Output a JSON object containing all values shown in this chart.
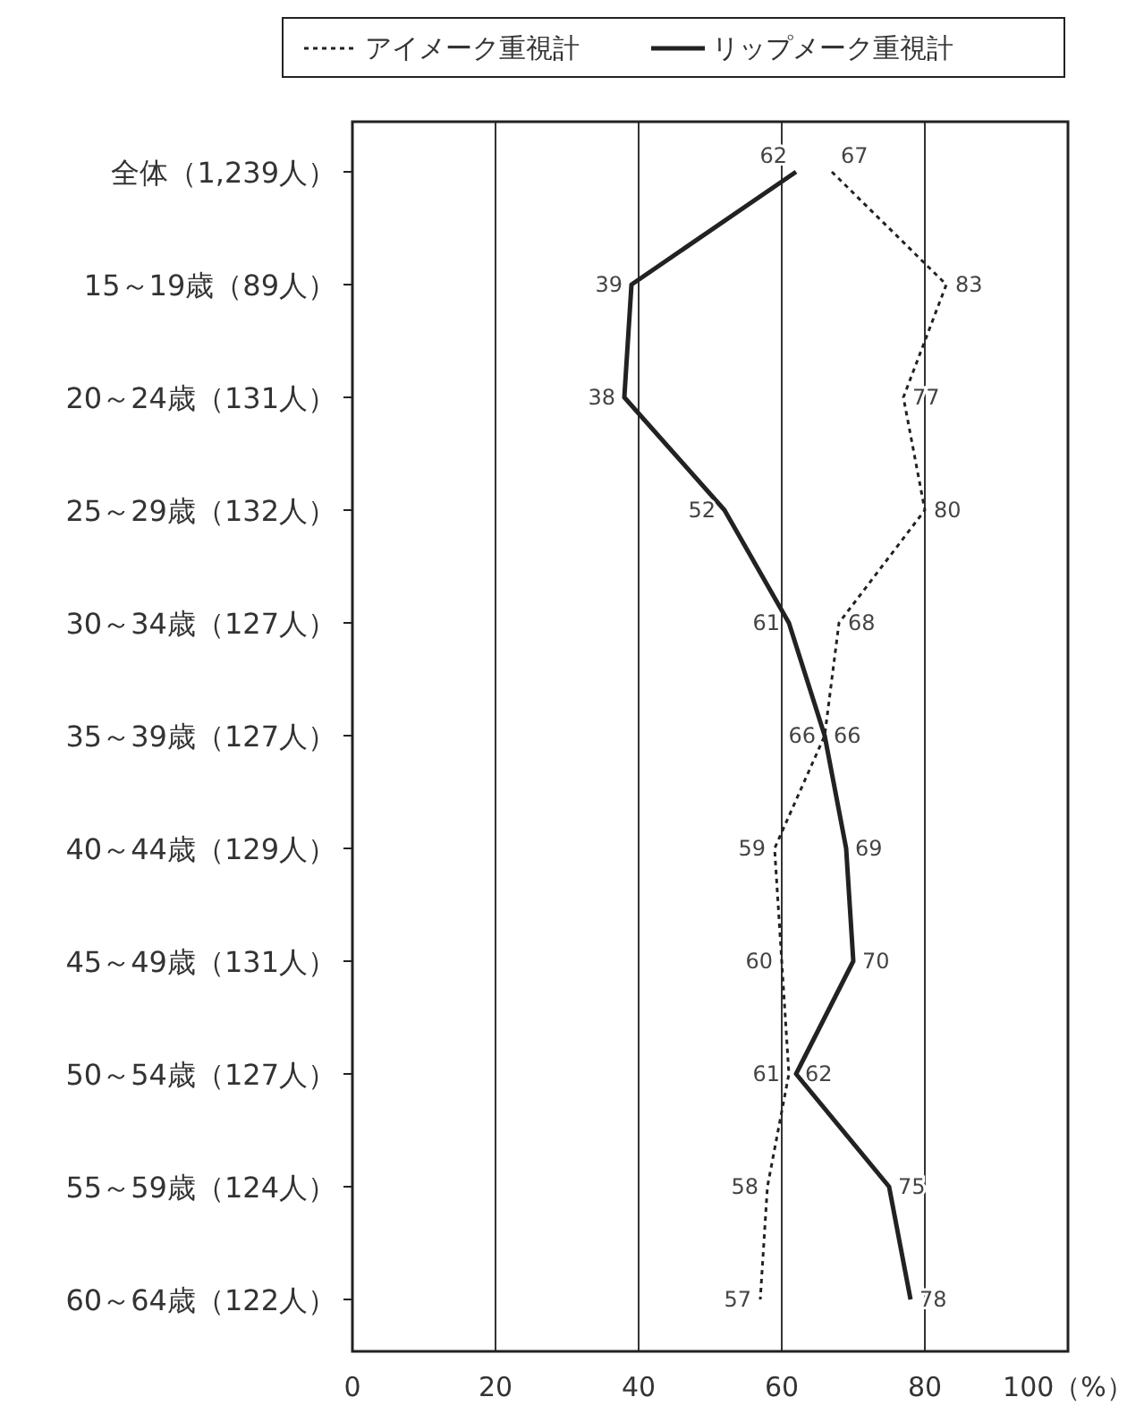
{
  "chart_data": {
    "type": "line",
    "orientation": "horizontal",
    "categories": [
      "全体（1,239人）",
      "15～19歳（89人）",
      "20～24歳（131人）",
      "25～29歳（132人）",
      "30～34歳（127人）",
      "35～39歳（127人）",
      "40～44歳（129人）",
      "45～49歳（131人）",
      "50～54歳（127人）",
      "55～59歳（124人）",
      "60～64歳（122人）"
    ],
    "series": [
      {
        "name": "アイメーク重視計",
        "color": "#222222",
        "line_style": "dotted",
        "values": [
          67,
          83,
          77,
          80,
          68,
          66,
          59,
          60,
          61,
          58,
          57
        ]
      },
      {
        "name": "リップメーク重視計",
        "color": "#222222",
        "line_style": "solid",
        "values": [
          62,
          39,
          38,
          52,
          61,
          66,
          69,
          70,
          62,
          75,
          78
        ]
      }
    ],
    "xlim": [
      0,
      100
    ],
    "xticks": [
      0,
      20,
      40,
      60,
      80,
      {
        "value": 100,
        "label": "100（%）"
      }
    ],
    "grid": "x",
    "legend": "top",
    "data_labels": true
  }
}
